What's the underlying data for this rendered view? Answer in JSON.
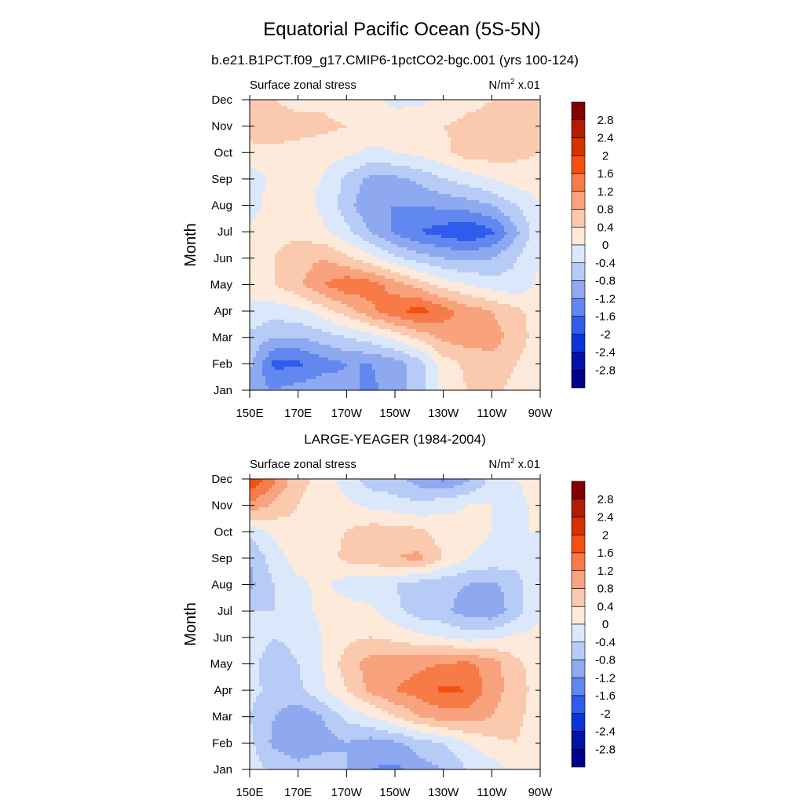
{
  "title": "Equatorial Pacific Ocean (5S-5N)",
  "chart_data": [
    {
      "type": "heatmap",
      "title": "b.e21.B1PCT.f09_g17.CMIP6-1pctCO2-bgc.001 (yrs 100-124)",
      "left_label": "Surface zonal stress",
      "units": {
        "base": "N/m",
        "sup": "2",
        "scale": "x.01"
      },
      "ylabel": "Month",
      "x_ticks": [
        "150E",
        "170E",
        "170W",
        "150W",
        "130W",
        "110W",
        "90W"
      ],
      "y_ticks": [
        "Jan",
        "Feb",
        "Mar",
        "Apr",
        "May",
        "Jun",
        "Jul",
        "Aug",
        "Sep",
        "Oct",
        "Nov",
        "Dec"
      ],
      "xlim": [
        150,
        270
      ],
      "ylim": [
        "Jan",
        "Dec"
      ],
      "colorbar_labels": [
        "2.8",
        "2.4",
        "2",
        "1.6",
        "1.2",
        "0.8",
        "0.4",
        "0",
        "-0.4",
        "-0.8",
        "-1.2",
        "-1.6",
        "-2",
        "-2.4",
        "-2.8"
      ],
      "columns_lon": [
        150,
        160,
        170,
        180,
        190,
        200,
        210,
        220,
        230,
        240,
        250,
        260,
        270
      ],
      "rows": [
        [
          -1.0,
          -1.2,
          -1.0,
          -0.9,
          -1.1,
          -1.3,
          -1.0,
          -0.6,
          0.1,
          0.4,
          0.5,
          0.3,
          0.1
        ],
        [
          -0.7,
          -1.7,
          -1.7,
          -1.4,
          -1.2,
          -1.2,
          -1.0,
          -0.6,
          0.2,
          0.5,
          0.6,
          0.4,
          0.1
        ],
        [
          -0.5,
          -0.8,
          -0.8,
          -0.6,
          -0.4,
          -0.2,
          0.1,
          0.5,
          0.9,
          1.0,
          1.0,
          0.6,
          0.2
        ],
        [
          -0.1,
          -0.2,
          -0.1,
          0.2,
          0.6,
          1.1,
          1.5,
          1.8,
          1.4,
          1.0,
          0.8,
          0.5,
          0.2
        ],
        [
          0.2,
          0.4,
          0.7,
          1.2,
          1.5,
          1.4,
          1.0,
          0.6,
          0.2,
          0.0,
          -0.2,
          -0.3,
          0.1
        ],
        [
          0.2,
          0.4,
          0.6,
          0.8,
          0.5,
          0.1,
          -0.3,
          -0.6,
          -0.8,
          -0.9,
          -0.8,
          -0.4,
          0.0
        ],
        [
          0.1,
          0.3,
          0.3,
          0.1,
          -0.3,
          -0.8,
          -1.3,
          -1.6,
          -1.8,
          -2.0,
          -1.7,
          -0.9,
          -0.1
        ],
        [
          -0.2,
          0.2,
          0.2,
          -0.1,
          -0.6,
          -1.2,
          -1.2,
          -1.2,
          -1.1,
          -1.0,
          -0.8,
          -0.4,
          0.0
        ],
        [
          -0.2,
          0.1,
          0.1,
          0.0,
          -0.5,
          -0.9,
          -0.9,
          -0.7,
          -0.4,
          -0.2,
          0.0,
          0.2,
          0.2
        ],
        [
          0.2,
          0.3,
          0.3,
          0.2,
          0.1,
          -0.1,
          0.0,
          0.1,
          0.3,
          0.6,
          0.6,
          0.5,
          0.4
        ],
        [
          0.7,
          0.6,
          0.5,
          0.5,
          0.4,
          0.3,
          0.2,
          0.3,
          0.4,
          0.5,
          0.5,
          0.5,
          0.4
        ],
        [
          0.5,
          0.4,
          0.3,
          0.3,
          0.2,
          0.1,
          -0.1,
          -0.1,
          0.1,
          0.3,
          0.4,
          0.4,
          0.4
        ]
      ]
    },
    {
      "type": "heatmap",
      "title": "LARGE-YEAGER (1984-2004)",
      "left_label": "Surface zonal stress",
      "units": {
        "base": "N/m",
        "sup": "2",
        "scale": "x.01"
      },
      "ylabel": "Month",
      "x_ticks": [
        "150E",
        "170E",
        "170W",
        "150W",
        "130W",
        "110W",
        "90W"
      ],
      "y_ticks": [
        "Jan",
        "Feb",
        "Mar",
        "Apr",
        "May",
        "Jun",
        "Jul",
        "Aug",
        "Sep",
        "Oct",
        "Nov",
        "Dec"
      ],
      "xlim": [
        150,
        270
      ],
      "ylim": [
        "Jan",
        "Dec"
      ],
      "colorbar_labels": [
        "2.8",
        "2.4",
        "2",
        "1.6",
        "1.2",
        "0.8",
        "0.4",
        "0",
        "-0.4",
        "-0.8",
        "-1.2",
        "-1.6",
        "-2",
        "-2.4",
        "-2.8"
      ],
      "columns_lon": [
        150,
        160,
        170,
        180,
        190,
        200,
        210,
        220,
        230,
        240,
        250,
        260,
        270
      ],
      "rows": [
        [
          -0.2,
          -0.5,
          -0.7,
          -0.5,
          -0.8,
          -1.2,
          -1.3,
          -1.0,
          -0.8,
          -0.4,
          -0.2,
          0.1,
          0.1
        ],
        [
          -0.3,
          -0.9,
          -1.0,
          -1.0,
          -0.8,
          -1.0,
          -0.9,
          -0.6,
          -0.4,
          0.0,
          0.3,
          0.4,
          0.2
        ],
        [
          -0.4,
          -0.8,
          -1.1,
          -0.8,
          -0.3,
          0.0,
          0.4,
          0.8,
          1.0,
          1.0,
          0.8,
          0.5,
          0.2
        ],
        [
          -0.3,
          -0.5,
          -0.5,
          -0.1,
          0.4,
          0.9,
          1.2,
          1.4,
          1.7,
          1.6,
          1.0,
          0.6,
          0.2
        ],
        [
          -0.3,
          -0.6,
          -0.4,
          0.0,
          0.6,
          1.0,
          1.0,
          1.1,
          1.2,
          1.3,
          1.0,
          0.5,
          0.2
        ],
        [
          -0.2,
          -0.4,
          -0.3,
          0.0,
          0.3,
          0.4,
          0.3,
          0.1,
          0.0,
          -0.2,
          -0.1,
          0.1,
          0.1
        ],
        [
          -0.4,
          -0.4,
          -0.2,
          0.1,
          0.2,
          0.1,
          -0.3,
          -0.6,
          -0.7,
          -1.0,
          -1.1,
          -0.6,
          0.0
        ],
        [
          -0.9,
          -0.4,
          -0.1,
          0.1,
          -0.2,
          -0.3,
          -0.4,
          -0.6,
          -0.7,
          -0.8,
          -0.9,
          -0.6,
          0.0
        ],
        [
          -0.8,
          -0.2,
          0.2,
          0.2,
          0.5,
          0.6,
          0.8,
          0.9,
          0.4,
          0.0,
          -0.1,
          -0.2,
          0.0
        ],
        [
          -0.3,
          0.1,
          0.3,
          0.3,
          0.4,
          0.6,
          0.6,
          0.5,
          0.2,
          0.1,
          0.0,
          0.0,
          0.0
        ],
        [
          1.1,
          0.7,
          0.4,
          0.2,
          0.1,
          -0.1,
          -0.2,
          -0.3,
          -0.1,
          0.0,
          0.0,
          -0.2,
          0.2
        ],
        [
          2.0,
          1.3,
          0.5,
          0.3,
          -0.2,
          -0.6,
          -0.7,
          -1.0,
          -1.3,
          -0.9,
          -0.3,
          0.0,
          0.2
        ]
      ]
    }
  ],
  "colors": {
    "palette_high_to_low": [
      "#840000",
      "#b21c00",
      "#d63200",
      "#f5500f",
      "#f77b47",
      "#f8a27e",
      "#fbc9ad",
      "#fdeada",
      "#dbe8fb",
      "#b6ccf6",
      "#8fa9f1",
      "#6188ef",
      "#2f5cea",
      "#0a33d8",
      "#0213a8",
      "#00008a"
    ]
  }
}
